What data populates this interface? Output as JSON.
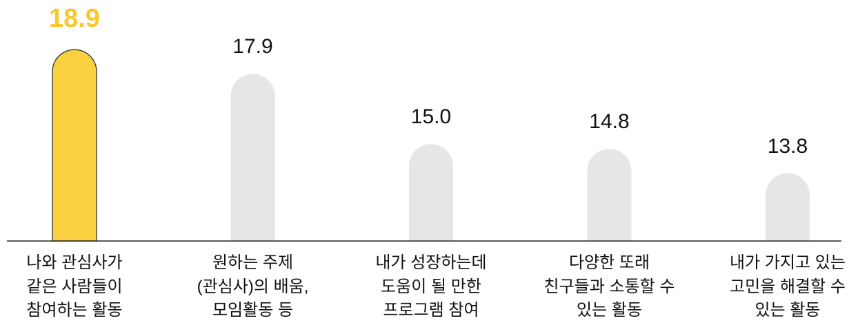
{
  "chart_data": {
    "type": "bar",
    "categories": [
      "나와 관심사가\n같은 사람들이\n참여하는 활동",
      "원하는 주제\n(관심사)의 배움,\n모임활동 등",
      "내가 성장하는데\n도움이 될 만한\n프로그램 참여",
      "다양한 또래\n친구들과 소통할 수\n있는 활동",
      "내가 가지고 있는\n고민을 해결할 수\n있는 활동"
    ],
    "values": [
      18.9,
      17.9,
      15.0,
      14.8,
      13.8
    ],
    "value_labels": [
      "18.9",
      "17.9",
      "15.0",
      "14.8",
      "13.8"
    ],
    "colors": [
      "#f9d03f",
      "#e6e6e6",
      "#e6e6e6",
      "#e6e6e6",
      "#e6e6e6"
    ],
    "highlight": 0,
    "highlight_label_color": "#f9c82b",
    "ylim": [
      11,
      19.5
    ]
  }
}
